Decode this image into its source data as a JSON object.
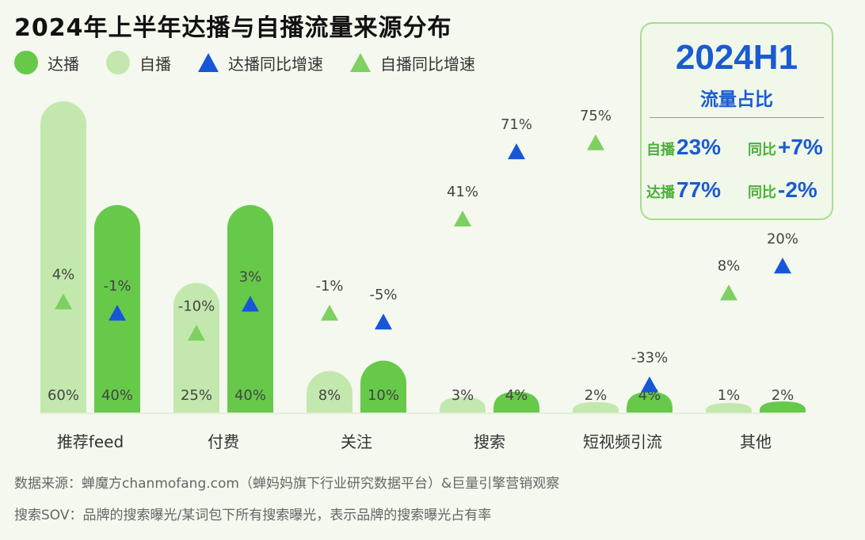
{
  "title": "2024年上半年达播与自播流量来源分布",
  "legend": [
    {
      "label": "达播",
      "shape": "circle",
      "color": "#66c94a"
    },
    {
      "label": "自播",
      "shape": "circle",
      "color": "#c3e8ad"
    },
    {
      "label": "达播同比增速",
      "shape": "triangle",
      "color": "#1756d8"
    },
    {
      "label": "自播同比增速",
      "shape": "triangle",
      "color": "#7fcf61"
    }
  ],
  "summary": {
    "year": "2024H1",
    "subtitle": "流量占比",
    "self_label": "自播",
    "self_value": "23%",
    "self_yoy_label": "同比",
    "self_yoy_value": "+7%",
    "kol_label": "达播",
    "kol_value": "77%",
    "kol_yoy_label": "同比",
    "kol_yoy_value": "-2%"
  },
  "chart_data": {
    "type": "bar",
    "categories": [
      "推荐feed",
      "付费",
      "关注",
      "搜索",
      "短视频引流",
      "其他"
    ],
    "series": [
      {
        "name": "自播",
        "values": [
          60,
          25,
          8,
          3,
          2,
          1
        ],
        "labels": [
          "60%",
          "25%",
          "8%",
          "3%",
          "2%",
          "1%"
        ],
        "color": "#c3e8ad"
      },
      {
        "name": "达播",
        "values": [
          40,
          40,
          10,
          4,
          4,
          2
        ],
        "labels": [
          "40%",
          "40%",
          "10%",
          "4%",
          "4%",
          "2%"
        ],
        "color": "#66c94a"
      }
    ],
    "growth": [
      {
        "name": "自播同比增速",
        "values": [
          4,
          -10,
          -1,
          41,
          75,
          8
        ],
        "labels": [
          "4%",
          "-10%",
          "-1%",
          "41%",
          "75%",
          "8%"
        ],
        "color": "#7fcf61"
      },
      {
        "name": "达播同比增速",
        "values": [
          -1,
          3,
          -5,
          71,
          -33,
          20
        ],
        "labels": [
          "-1%",
          "3%",
          "-5%",
          "71%",
          "-33%",
          "20%"
        ],
        "color": "#1756d8"
      }
    ],
    "legend_position": "top-left"
  },
  "footnotes": [
    "数据来源：蝉魔方chanmofang.com（蝉妈妈旗下行业研究数据平台）&巨量引擎营销观察",
    "搜索SOV：品牌的搜索曝光/某词包下所有搜索曝光，表示品牌的搜索曝光占有率"
  ]
}
